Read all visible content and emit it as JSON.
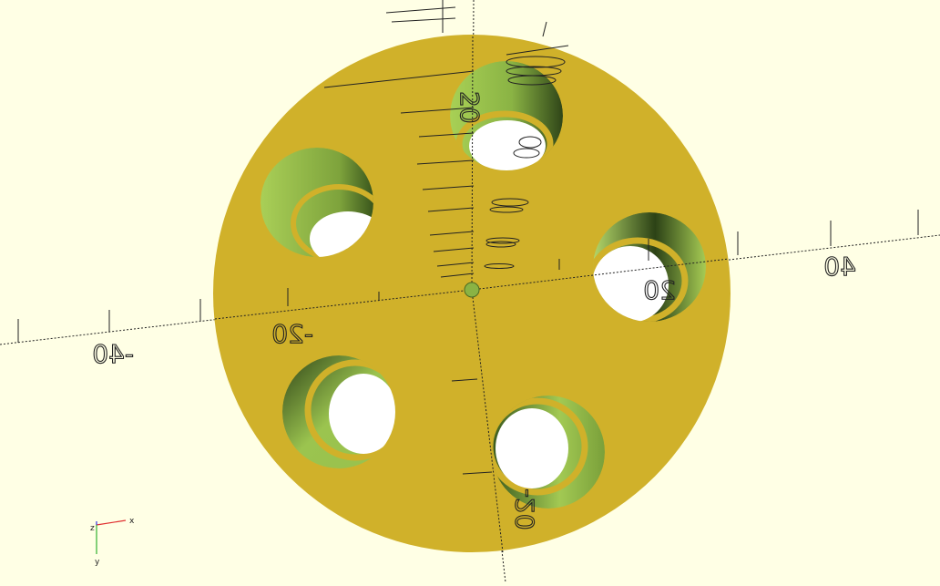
{
  "viewport": {
    "background": "#ffffe5",
    "part_color": "#d0b12a",
    "hole_color": "#9fc54e",
    "hole_shadow": "#3f5a1f",
    "axis_color": "#111111",
    "axis_labels": {
      "x_neg_40": "-40",
      "x_neg_20": "-20",
      "x_pos_20": "20",
      "x_pos_40": "40",
      "y_pos_20": "20",
      "y_neg_20": "-20"
    }
  },
  "axis_indicator": {
    "x_label": "x",
    "y_label": "y",
    "z_label": "z",
    "x_color": "#e03030",
    "y_color": "#30b030",
    "z_color": "#3030e0"
  }
}
